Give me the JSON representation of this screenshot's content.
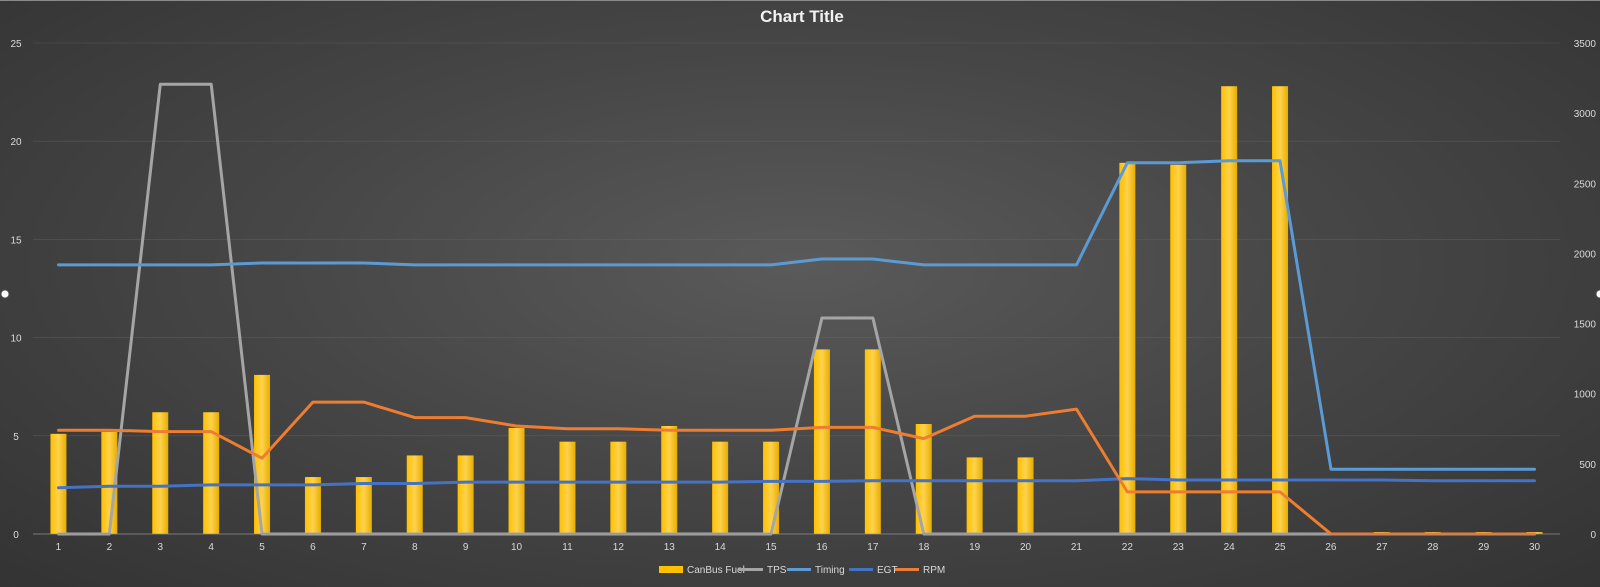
{
  "chart_data": {
    "type": "bar",
    "title": "Chart Title",
    "categories": [
      "1",
      "2",
      "3",
      "4",
      "5",
      "6",
      "7",
      "8",
      "9",
      "10",
      "11",
      "12",
      "13",
      "14",
      "15",
      "16",
      "17",
      "18",
      "19",
      "20",
      "21",
      "22",
      "23",
      "24",
      "25",
      "26",
      "27",
      "28",
      "29",
      "30"
    ],
    "y_left": {
      "ylim": [
        0,
        25
      ],
      "ticks": [
        0,
        5,
        10,
        15,
        20,
        25
      ]
    },
    "y_right": {
      "ylim": [
        0,
        3500
      ],
      "ticks": [
        0,
        500,
        1000,
        1500,
        2000,
        2500,
        3000,
        3500
      ]
    },
    "grid": true,
    "legend_position": "bottom",
    "series": [
      {
        "name": "CanBus Fuel",
        "type": "bar",
        "axis": "left",
        "color": "#ffc000",
        "values": [
          5.1,
          5.2,
          6.2,
          6.2,
          8.1,
          2.9,
          2.9,
          4.0,
          4.0,
          5.4,
          4.7,
          4.7,
          5.5,
          4.7,
          4.7,
          9.4,
          9.4,
          5.6,
          3.9,
          3.9,
          0,
          18.9,
          18.8,
          22.8,
          22.8,
          0,
          0.1,
          0.1,
          0.1,
          0.1
        ]
      },
      {
        "name": "TPS",
        "type": "line",
        "axis": "left",
        "color": "#a5a5a5",
        "values": [
          0,
          0,
          22.9,
          22.9,
          0,
          0,
          0,
          0,
          0,
          0,
          0,
          0,
          0,
          0,
          0,
          11,
          11,
          0,
          0,
          0,
          0,
          0,
          0,
          0,
          0,
          0,
          0,
          0,
          0,
          0
        ]
      },
      {
        "name": "Timing",
        "type": "line",
        "axis": "left",
        "color": "#5b9bd5",
        "values": [
          13.7,
          13.7,
          13.7,
          13.7,
          13.8,
          13.8,
          13.8,
          13.7,
          13.7,
          13.7,
          13.7,
          13.7,
          13.7,
          13.7,
          13.7,
          14.0,
          14.0,
          13.7,
          13.7,
          13.7,
          13.7,
          18.9,
          18.9,
          19.0,
          19.0,
          3.3,
          3.3,
          3.3,
          3.3,
          3.3
        ]
      },
      {
        "name": "EGT",
        "type": "line",
        "axis": "right",
        "color": "#4472c4",
        "values": [
          330,
          340,
          340,
          350,
          350,
          350,
          360,
          360,
          370,
          370,
          370,
          370,
          370,
          370,
          375,
          375,
          380,
          380,
          380,
          380,
          380,
          395,
          385,
          385,
          385,
          385,
          385,
          380,
          380,
          380
        ]
      },
      {
        "name": "RPM",
        "type": "line",
        "axis": "right",
        "color": "#ed7d31",
        "values": [
          740,
          740,
          730,
          730,
          540,
          940,
          940,
          830,
          830,
          770,
          750,
          750,
          740,
          740,
          740,
          760,
          760,
          680,
          840,
          840,
          890,
          300,
          300,
          300,
          300,
          0,
          0,
          0,
          0,
          0
        ]
      }
    ]
  }
}
